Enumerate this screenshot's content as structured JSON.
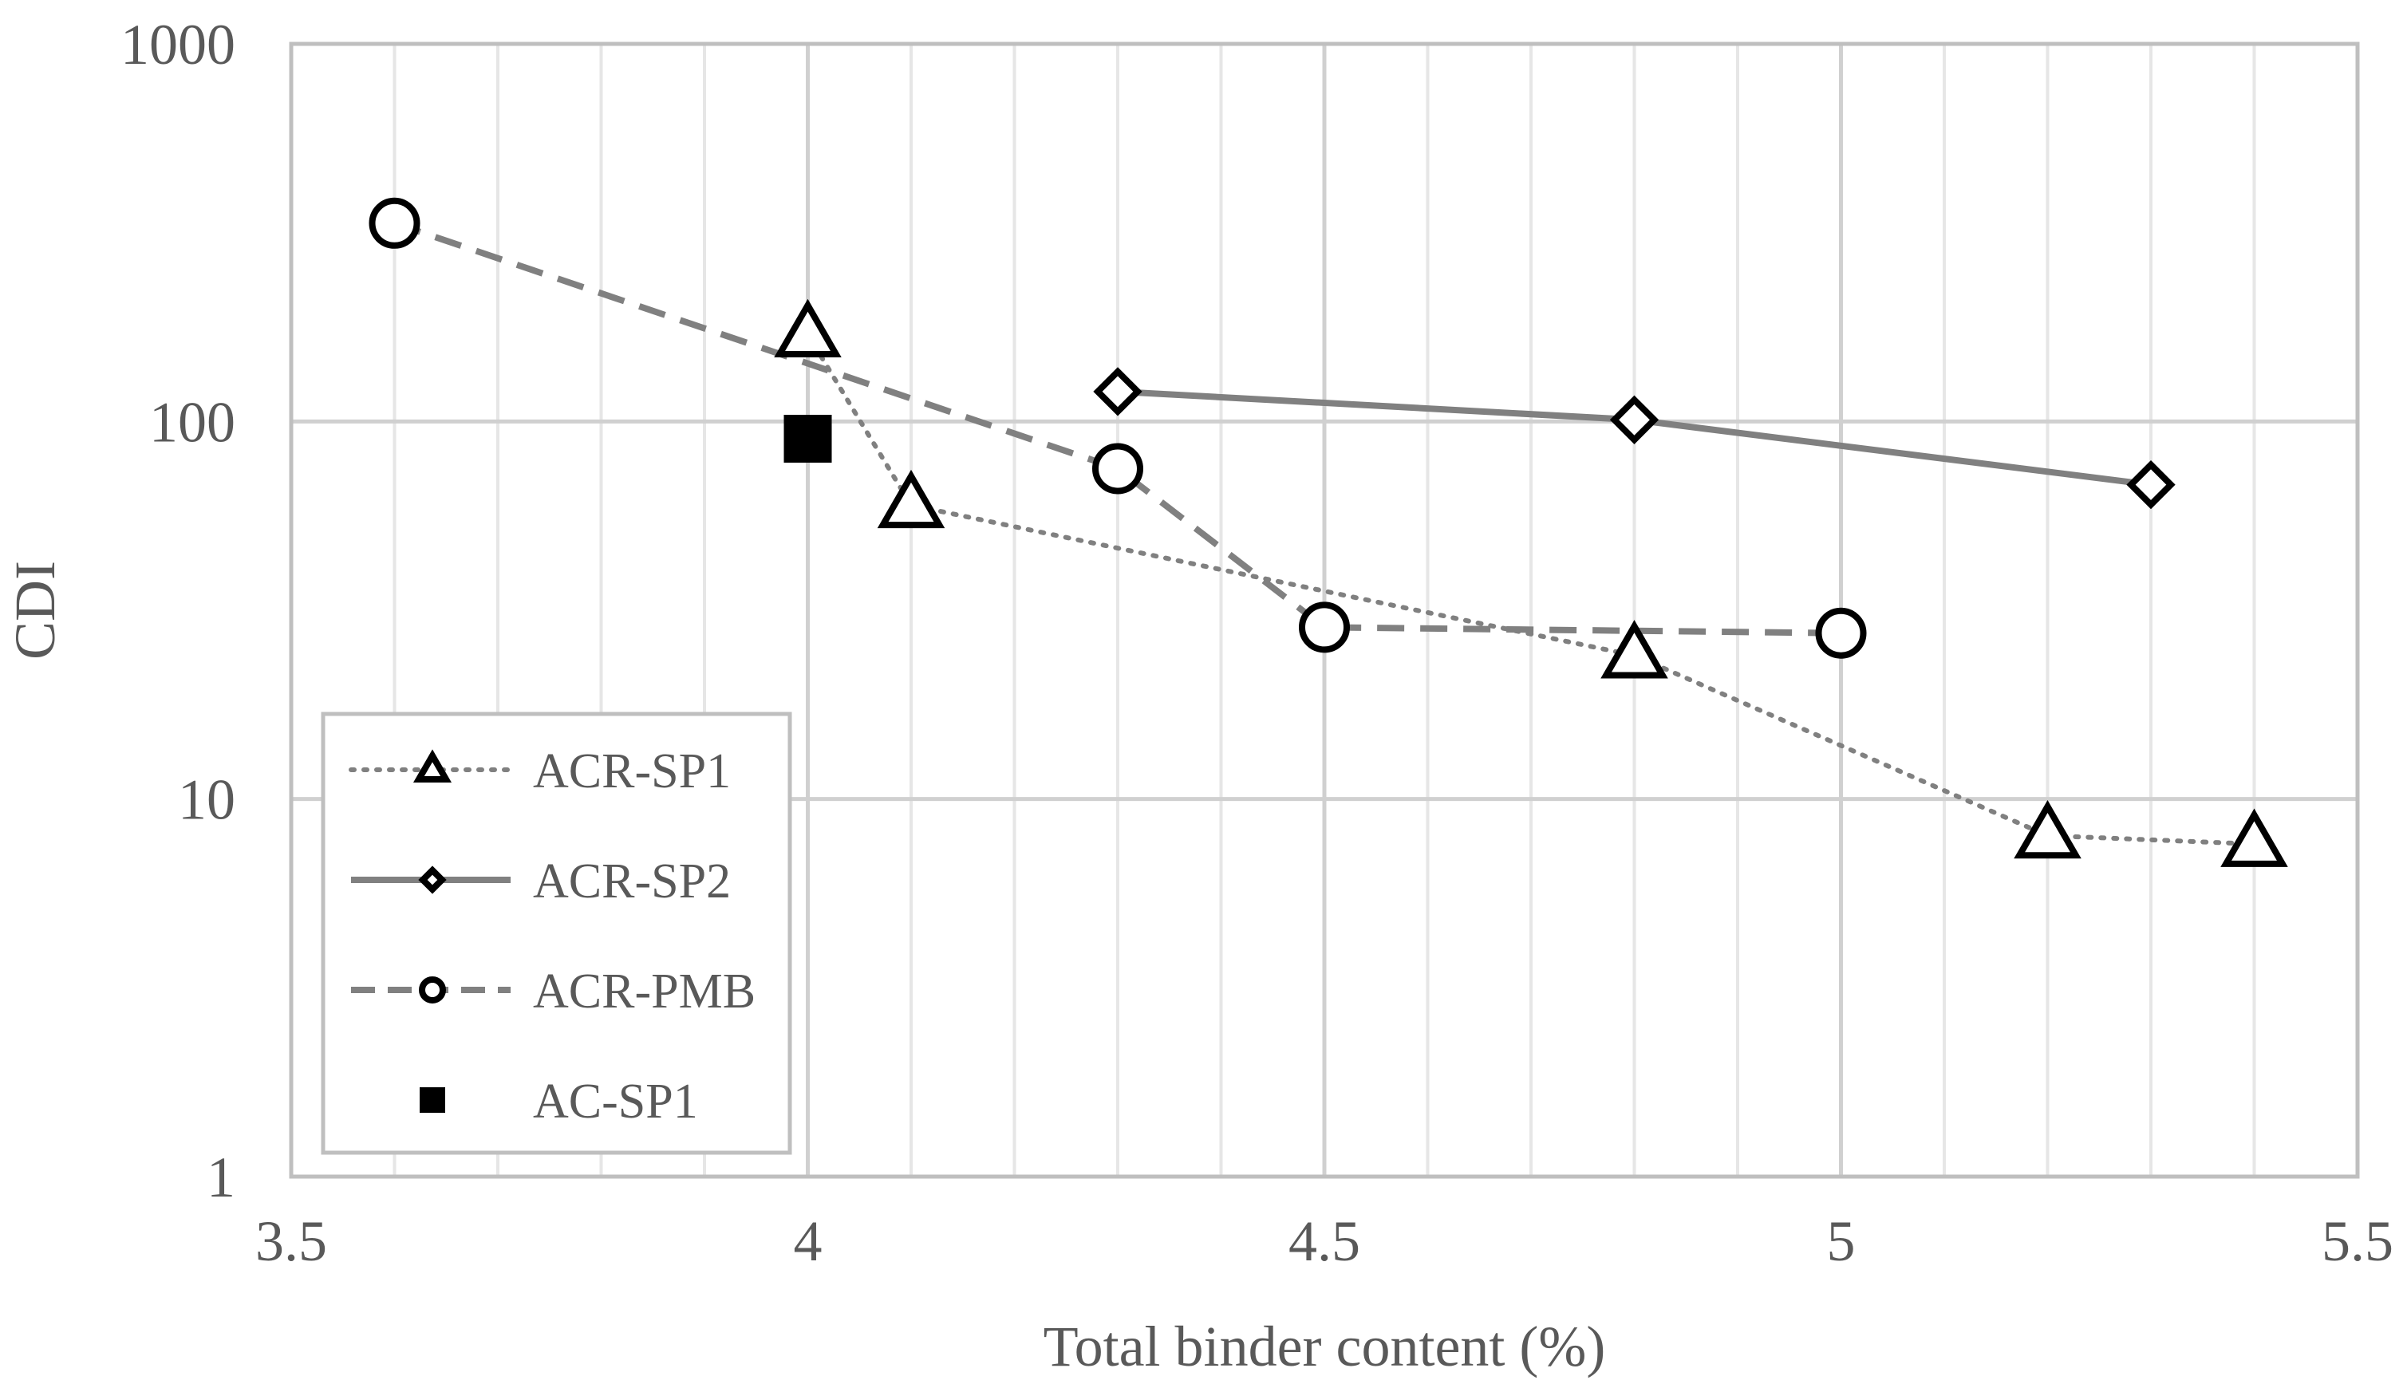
{
  "chart_data": {
    "type": "scatter",
    "title": "",
    "xlabel": "Total binder content (%)",
    "ylabel": "CDI",
    "xlim": [
      3.5,
      5.5
    ],
    "ylim": [
      1,
      1000
    ],
    "yscale": "log",
    "x_ticks": [
      "3.5",
      "4",
      "4.5",
      "5",
      "5.5"
    ],
    "y_ticks": [
      "1",
      "10",
      "100",
      "1000"
    ],
    "grid": true,
    "legend_position": "bottom-left",
    "series": [
      {
        "name": "ACR-SP1",
        "marker": "triangle",
        "line": "dotted",
        "color": "#808080",
        "x": [
          4.0,
          4.1,
          4.8,
          5.2,
          5.4
        ],
        "y": [
          170,
          60,
          24,
          8,
          7.6
        ]
      },
      {
        "name": "ACR-SP2",
        "marker": "diamond",
        "line": "solid",
        "color": "#808080",
        "x": [
          4.3,
          4.8,
          5.3
        ],
        "y": [
          120,
          101,
          68
        ]
      },
      {
        "name": "ACR-PMB",
        "marker": "circle",
        "line": "dashed",
        "color": "#808080",
        "x": [
          3.6,
          4.3,
          4.5,
          5.0
        ],
        "y": [
          335,
          75,
          28.5,
          27.5
        ]
      },
      {
        "name": "AC-SP1",
        "marker": "square",
        "line": "none",
        "color": "#000000",
        "x": [
          4.0
        ],
        "y": [
          90
        ]
      }
    ]
  }
}
